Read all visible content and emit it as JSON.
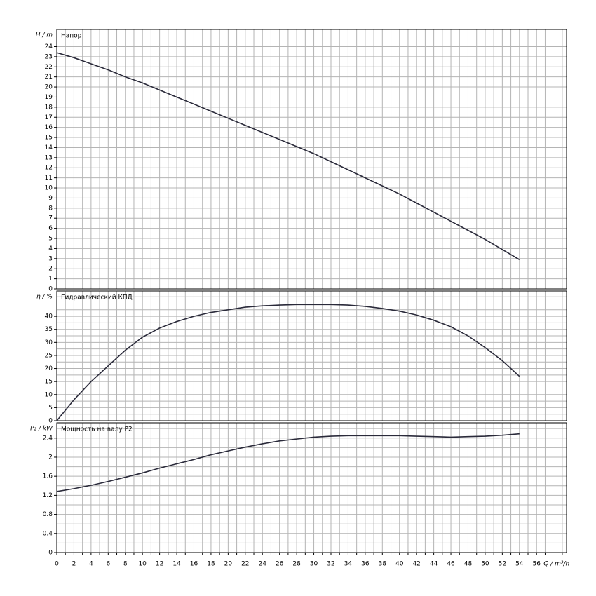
{
  "chart_data": [
    {
      "type": "line",
      "axis_label": "H / m",
      "title": "Напор",
      "xlim": [
        0,
        59.5
      ],
      "ylim": [
        0,
        25.7
      ],
      "yticks": [
        0,
        1,
        2,
        3,
        4,
        5,
        6,
        7,
        8,
        9,
        10,
        11,
        12,
        13,
        14,
        15,
        16,
        17,
        18,
        19,
        20,
        21,
        22,
        23,
        24
      ],
      "x": [
        0,
        2,
        4,
        6,
        8,
        10,
        12,
        14,
        16,
        18,
        20,
        22,
        24,
        26,
        28,
        30,
        32,
        34,
        36,
        38,
        40,
        42,
        44,
        46,
        48,
        50,
        52,
        54
      ],
      "series": [
        {
          "color": "#2a2a3a",
          "values": [
            23.4,
            22.9,
            22.3,
            21.7,
            21.0,
            20.4,
            19.7,
            19.0,
            18.3,
            17.6,
            16.9,
            16.2,
            15.5,
            14.8,
            14.1,
            13.4,
            12.6,
            11.8,
            11.0,
            10.2,
            9.4,
            8.5,
            7.6,
            6.7,
            5.8,
            4.9,
            3.9,
            2.9
          ]
        }
      ]
    },
    {
      "type": "line",
      "axis_label": "η / %",
      "title": "Гидравлический КПД",
      "xlim": [
        0,
        59.5
      ],
      "ylim": [
        0,
        49.7
      ],
      "yticks": [
        0,
        5,
        10,
        15,
        20,
        25,
        30,
        35,
        40
      ],
      "minor_yticks": [
        2.5,
        7.5,
        12.5,
        17.5,
        22.5,
        27.5,
        32.5,
        37.5,
        42.5,
        47.5
      ],
      "x": [
        0,
        2,
        4,
        6,
        8,
        10,
        12,
        14,
        16,
        18,
        20,
        22,
        24,
        26,
        28,
        30,
        32,
        34,
        36,
        38,
        40,
        42,
        44,
        46,
        48,
        50,
        52,
        54
      ],
      "series": [
        {
          "color": "#2a2a3a",
          "values": [
            0,
            8,
            15,
            21,
            27,
            32,
            35.5,
            38,
            40,
            41.5,
            42.5,
            43.5,
            44,
            44.3,
            44.5,
            44.5,
            44.5,
            44.3,
            43.8,
            43,
            42,
            40.5,
            38.5,
            36,
            32.5,
            28,
            23,
            17
          ]
        }
      ]
    },
    {
      "type": "line",
      "axis_label": "P₂ / kW",
      "title": "Мощность на валу P2",
      "xlim": [
        0,
        59.5
      ],
      "ylim": [
        0,
        2.72
      ],
      "yticks": [
        0,
        0.4,
        0.8,
        1.2,
        1.6,
        2,
        2.4
      ],
      "minor_yticks": [
        0.2,
        0.6,
        1.0,
        1.4,
        1.8,
        2.2,
        2.6
      ],
      "x_label": "Q / m³/h",
      "xticks": [
        0,
        2,
        4,
        6,
        8,
        10,
        12,
        14,
        16,
        18,
        20,
        22,
        24,
        26,
        28,
        30,
        32,
        34,
        36,
        38,
        40,
        42,
        44,
        46,
        48,
        50,
        52,
        54,
        56
      ],
      "minor_xticks": [
        1,
        3,
        5,
        7,
        9,
        11,
        13,
        15,
        17,
        19,
        21,
        23,
        25,
        27,
        29,
        31,
        33,
        35,
        37,
        39,
        41,
        43,
        45,
        47,
        49,
        51,
        53,
        55,
        57,
        59
      ],
      "x": [
        0,
        2,
        4,
        6,
        8,
        10,
        12,
        14,
        16,
        18,
        20,
        22,
        24,
        26,
        28,
        30,
        32,
        34,
        36,
        38,
        40,
        42,
        44,
        46,
        48,
        50,
        52,
        54
      ],
      "series": [
        {
          "color": "#2a2a3a",
          "values": [
            1.28,
            1.34,
            1.41,
            1.49,
            1.58,
            1.67,
            1.77,
            1.86,
            1.95,
            2.05,
            2.13,
            2.21,
            2.28,
            2.34,
            2.38,
            2.42,
            2.44,
            2.45,
            2.45,
            2.45,
            2.45,
            2.44,
            2.43,
            2.42,
            2.43,
            2.44,
            2.46,
            2.49
          ]
        }
      ]
    }
  ]
}
